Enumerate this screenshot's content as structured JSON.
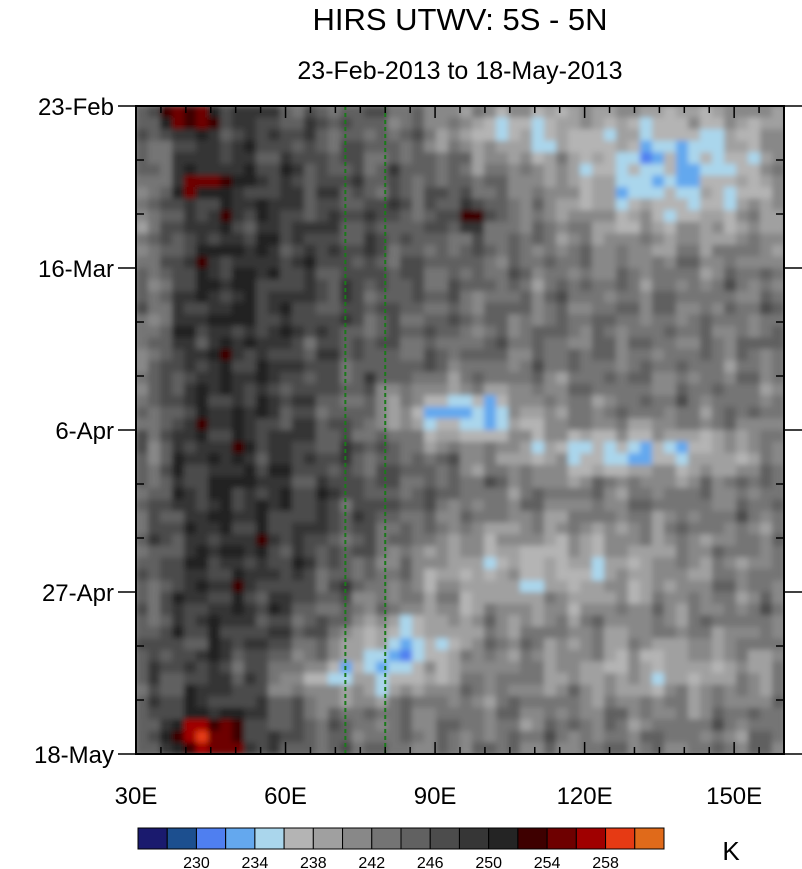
{
  "chart_data": {
    "type": "heatmap",
    "title": "HIRS UTWV: 5S - 5N",
    "subtitle": "23-Feb-2013 to 18-May-2013",
    "x_range": [
      30,
      160
    ],
    "x_ticks": [
      30,
      60,
      90,
      120,
      150
    ],
    "x_tick_labels": [
      "30E",
      "60E",
      "90E",
      "120E",
      "150E"
    ],
    "y_range_days": [
      0,
      84
    ],
    "y_ticks": [
      0,
      21,
      42,
      63,
      84
    ],
    "y_tick_labels": [
      "23-Feb",
      "16-Mar",
      "6-Apr",
      "27-Apr",
      "18-May"
    ],
    "reference_lines_lon": [
      72,
      80
    ],
    "reference_line_color": "#1a7a1a",
    "colorbar": {
      "levels": [
        228,
        230,
        232,
        234,
        236,
        238,
        240,
        242,
        244,
        246,
        248,
        250,
        252,
        254,
        256,
        258,
        260
      ],
      "labels": [
        "230",
        "234",
        "238",
        "242",
        "246",
        "250",
        "254",
        "258"
      ],
      "label_values": [
        230,
        234,
        238,
        242,
        246,
        250,
        254,
        258
      ],
      "colors": [
        "#1a1a6e",
        "#1c4f8f",
        "#4f7ff0",
        "#64a8ee",
        "#aad6ec",
        "#b4b4b4",
        "#a0a0a0",
        "#888888",
        "#747474",
        "#616161",
        "#4c4c4c",
        "#363636",
        "#242424",
        "#3e0000",
        "#6e0000",
        "#a00000",
        "#e63a14",
        "#e06a1a"
      ],
      "unit": "K"
    },
    "grid": false
  }
}
